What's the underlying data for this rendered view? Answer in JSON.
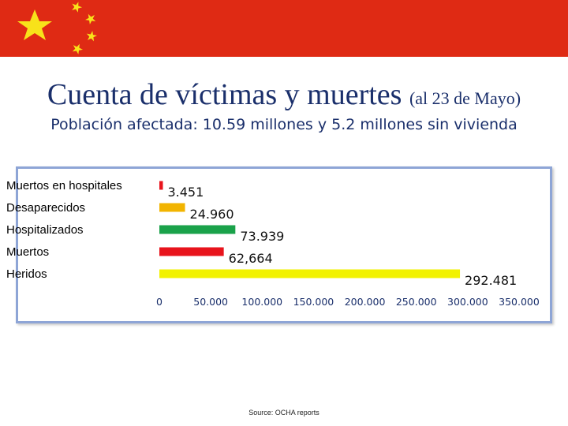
{
  "header": {
    "title_main": "Cuenta de víctimas y muertes",
    "title_small": "(al 23 de Mayo)",
    "subtitle": "Población afectada: 10.59 millones y 5.2 millones sin vivienda",
    "flag_colors": {
      "red": "#df2a14",
      "star": "#f8e21a"
    }
  },
  "chart_data": {
    "type": "bar",
    "orientation": "horizontal",
    "categories": [
      "Muertos en hospitales",
      "Desaparecidos",
      "Hospitalizados",
      "Muertos",
      "Heridos"
    ],
    "values": [
      3451,
      24960,
      73939,
      62664,
      292481
    ],
    "data_labels": [
      "3.451",
      "24.960",
      "73.939",
      "62,664",
      "292.481"
    ],
    "colors": [
      "#e8141c",
      "#f2b400",
      "#1aa24a",
      "#e8141c",
      "#f2f200"
    ],
    "xlim": [
      0,
      350000
    ],
    "xticks": [
      0,
      50000,
      100000,
      150000,
      200000,
      250000,
      300000,
      350000
    ],
    "xtick_labels": [
      "0",
      "50.000",
      "100.000",
      "150.000",
      "200.000",
      "250.000",
      "300.000",
      "350.000"
    ],
    "title": "",
    "xlabel": "",
    "ylabel": ""
  },
  "footer": {
    "source": "Source: OCHA reports"
  }
}
